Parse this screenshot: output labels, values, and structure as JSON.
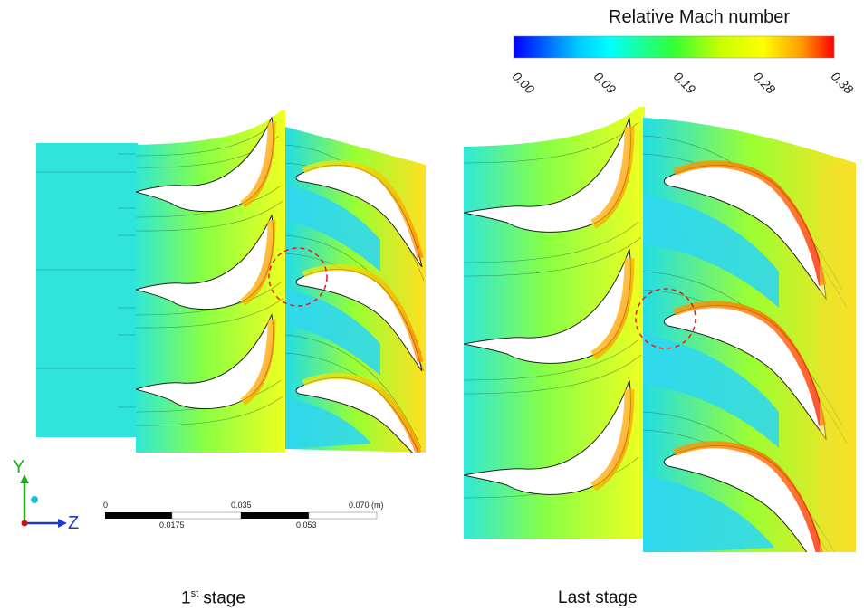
{
  "colorbar": {
    "title": "Relative Mach number",
    "ticks": [
      "0.00",
      "0.09",
      "0.19",
      "0.28",
      "0.38"
    ],
    "colors": [
      "#0000ff",
      "#00c8ff",
      "#00ffff",
      "#00ff66",
      "#99ff00",
      "#ffff00",
      "#ffaa00",
      "#ff0000"
    ]
  },
  "axes": {
    "y_label": "Y",
    "z_label": "Z"
  },
  "scale_bar": {
    "top_ticks": [
      "0",
      "0.035",
      "0.070 (m)"
    ],
    "bottom_ticks": [
      "0.0175",
      "0.053"
    ]
  },
  "panels": [
    {
      "caption_main": "1",
      "caption_sup": "st",
      "caption_rest": " stage"
    },
    {
      "caption_main": "Last stage"
    }
  ]
}
